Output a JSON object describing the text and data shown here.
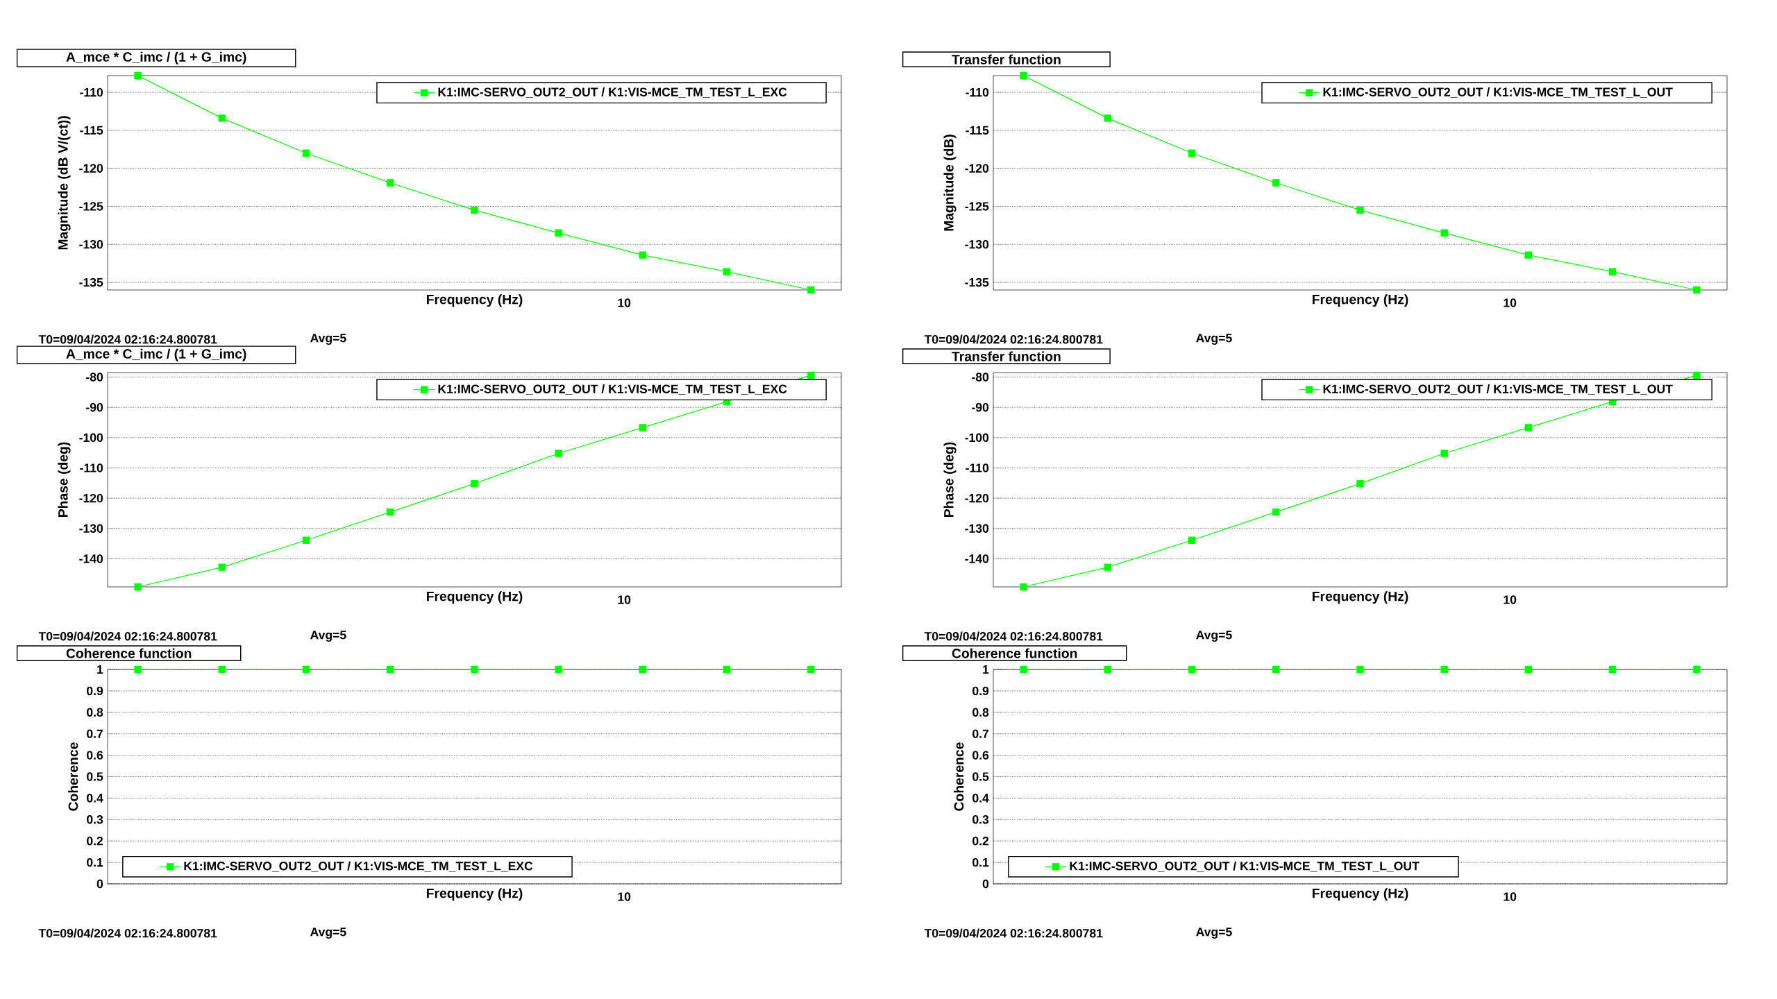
{
  "chart_data": [
    {
      "type": "line",
      "title": "A_mce * C_imc / (1 + G_imc)",
      "xlabel": "Frequency (Hz)",
      "ylabel": "Magnitude (dB V/(ct))",
      "grid": "y",
      "legend": "top right",
      "marker": "square",
      "categories": [
        null,
        null,
        null,
        null,
        null,
        null,
        null,
        null,
        null
      ],
      "series": [
        {
          "name": "K1:IMC-SERVO_OUT2_OUT / K1:VIS-MCE_TM_TEST_L_EXC",
          "color": "#00ff00",
          "values": [
            -107.8,
            -113.4,
            -118.0,
            -121.9,
            -125.5,
            -128.5,
            -131.4,
            -133.6,
            -136.0
          ]
        }
      ],
      "ylim": [
        -136.0,
        -107.8
      ],
      "yticks": [
        -135,
        -130,
        -125,
        -120,
        -115,
        -110
      ],
      "annotations": [
        "T0=09/04/2024 02:16:24.800781",
        "Avg=5",
        "10"
      ]
    },
    {
      "type": "line",
      "title": "Transfer function",
      "xlabel": "Frequency (Hz)",
      "ylabel": "Magnitude (dB)",
      "grid": "y",
      "legend": "top right",
      "marker": "square",
      "categories": [
        null,
        null,
        null,
        null,
        null,
        null,
        null,
        null,
        null
      ],
      "series": [
        {
          "name": "K1:IMC-SERVO_OUT2_OUT / K1:VIS-MCE_TM_TEST_L_OUT",
          "color": "#00ff00",
          "values": [
            -107.8,
            -113.4,
            -118.0,
            -121.9,
            -125.5,
            -128.5,
            -131.4,
            -133.6,
            -136.0
          ]
        }
      ],
      "ylim": [
        -136.0,
        -107.8
      ],
      "yticks": [
        -135,
        -130,
        -125,
        -120,
        -115,
        -110
      ],
      "annotations": [
        "T0=09/04/2024 02:16:24.800781",
        "Avg=5",
        "10"
      ]
    },
    {
      "type": "line",
      "title": "A_mce * C_imc / (1 + G_imc)",
      "xlabel": "Frequency (Hz)",
      "ylabel": "Phase (deg)",
      "grid": "y",
      "legend": "top right",
      "marker": "square",
      "categories": [
        null,
        null,
        null,
        null,
        null,
        null,
        null,
        null,
        null
      ],
      "series": [
        {
          "name": "K1:IMC-SERVO_OUT2_OUT / K1:VIS-MCE_TM_TEST_L_EXC",
          "color": "#00ff00",
          "values": [
            -149.3,
            -142.8,
            -133.9,
            -124.6,
            -115.2,
            -105.2,
            -96.7,
            -88.1,
            -79.4
          ]
        }
      ],
      "ylim": [
        -149.3,
        -78.5
      ],
      "yticks": [
        -140,
        -130,
        -120,
        -110,
        -100,
        -90,
        -80
      ],
      "annotations": [
        "T0=09/04/2024 02:16:24.800781",
        "Avg=5",
        "10"
      ]
    },
    {
      "type": "line",
      "title": "Transfer function",
      "xlabel": "Frequency (Hz)",
      "ylabel": "Phase (deg)",
      "grid": "y",
      "legend": "top right",
      "marker": "square",
      "categories": [
        null,
        null,
        null,
        null,
        null,
        null,
        null,
        null,
        null
      ],
      "series": [
        {
          "name": "K1:IMC-SERVO_OUT2_OUT / K1:VIS-MCE_TM_TEST_L_OUT",
          "color": "#00ff00",
          "values": [
            -149.3,
            -142.8,
            -133.9,
            -124.6,
            -115.2,
            -105.2,
            -96.7,
            -88.1,
            -79.4
          ]
        }
      ],
      "ylim": [
        -149.3,
        -78.5
      ],
      "yticks": [
        -140,
        -130,
        -120,
        -110,
        -100,
        -90,
        -80
      ],
      "annotations": [
        "T0=09/04/2024 02:16:24.800781",
        "Avg=5",
        "10"
      ]
    },
    {
      "type": "line",
      "title": "Coherence function",
      "xlabel": "Frequency (Hz)",
      "ylabel": "Coherence",
      "grid": "y",
      "legend": "bottom left",
      "marker": "square",
      "categories": [
        null,
        null,
        null,
        null,
        null,
        null,
        null,
        null,
        null
      ],
      "series": [
        {
          "name": "K1:IMC-SERVO_OUT2_OUT / K1:VIS-MCE_TM_TEST_L_EXC",
          "color": "#00ff00",
          "values": [
            1,
            1,
            1,
            1,
            1,
            1,
            1,
            1,
            1
          ]
        }
      ],
      "ylim": [
        0,
        1
      ],
      "yticks": [
        0,
        0.1,
        0.2,
        0.3,
        0.4,
        0.5,
        0.6,
        0.7,
        0.8,
        0.9,
        1
      ],
      "annotations": [
        "T0=09/04/2024 02:16:24.800781",
        "Avg=5",
        "10"
      ]
    },
    {
      "type": "line",
      "title": "Coherence function",
      "xlabel": "Frequency (Hz)",
      "ylabel": "Coherence",
      "grid": "y",
      "legend": "bottom left",
      "marker": "square",
      "categories": [
        null,
        null,
        null,
        null,
        null,
        null,
        null,
        null,
        null
      ],
      "series": [
        {
          "name": "K1:IMC-SERVO_OUT2_OUT / K1:VIS-MCE_TM_TEST_L_OUT",
          "color": "#00ff00",
          "values": [
            1,
            1,
            1,
            1,
            1,
            1,
            1,
            1,
            1
          ]
        }
      ],
      "ylim": [
        0,
        1
      ],
      "yticks": [
        0,
        0.1,
        0.2,
        0.3,
        0.4,
        0.5,
        0.6,
        0.7,
        0.8,
        0.9,
        1
      ],
      "annotations": [
        "T0=09/04/2024 02:16:24.800781",
        "Avg=5",
        "10"
      ]
    }
  ]
}
